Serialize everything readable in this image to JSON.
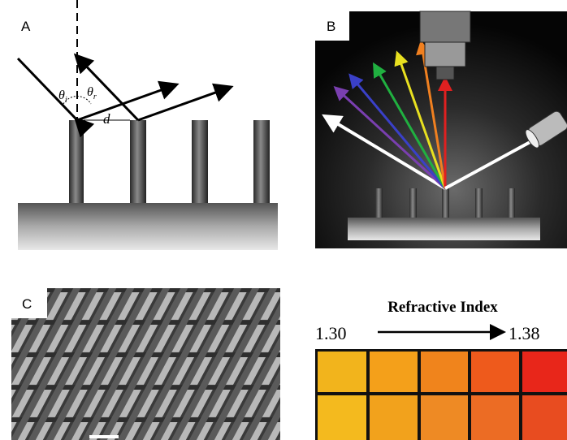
{
  "panels": {
    "a": {
      "label": "A",
      "theta_i": {
        "symbol": "θ",
        "subscript": "i"
      },
      "theta_r": {
        "symbol": "θ",
        "subscript": "r"
      },
      "spacing": "d"
    },
    "b": {
      "label": "B"
    },
    "c": {
      "label": "C"
    },
    "d": {
      "title": "Refractive Index",
      "low": "1.30",
      "high": "1.38"
    }
  }
}
